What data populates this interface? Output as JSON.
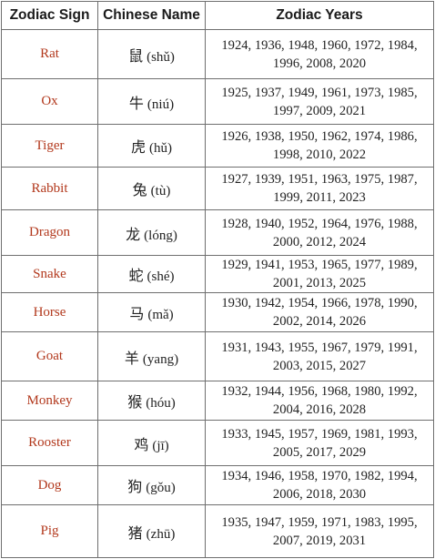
{
  "table": {
    "headers": {
      "sign": "Zodiac Sign",
      "chinese": "Chinese Name",
      "years": "Zodiac Years"
    },
    "rows": [
      {
        "sign": "Rat",
        "hanzi": "鼠",
        "pinyin": "(shǔ)",
        "years_line1": "1924, 1936, 1948, 1960, 1972, 1984,",
        "years_line2": "1996, 2008, 2020"
      },
      {
        "sign": "Ox",
        "hanzi": "牛",
        "pinyin": "(niú)",
        "years_line1": "1925, 1937, 1949, 1961, 1973, 1985,",
        "years_line2": "1997, 2009, 2021"
      },
      {
        "sign": "Tiger",
        "hanzi": "虎",
        "pinyin": "(hǔ)",
        "years_line1": "1926, 1938, 1950, 1962, 1974, 1986,",
        "years_line2": "1998, 2010, 2022"
      },
      {
        "sign": "Rabbit",
        "hanzi": "兔",
        "pinyin": "(tù)",
        "years_line1": "1927, 1939, 1951, 1963, 1975, 1987,",
        "years_line2": "1999, 2011, 2023"
      },
      {
        "sign": "Dragon",
        "hanzi": "龙",
        "pinyin": "(lóng)",
        "years_line1": "1928, 1940, 1952, 1964, 1976, 1988,",
        "years_line2": "2000, 2012, 2024"
      },
      {
        "sign": "Snake",
        "hanzi": "蛇",
        "pinyin": "(shé)",
        "years_line1": "1929, 1941, 1953, 1965, 1977, 1989,",
        "years_line2": "2001, 2013, 2025"
      },
      {
        "sign": "Horse",
        "hanzi": "马",
        "pinyin": "(mǎ)",
        "years_line1": "1930, 1942, 1954, 1966, 1978, 1990,",
        "years_line2": "2002, 2014, 2026"
      },
      {
        "sign": "Goat",
        "hanzi": "羊",
        "pinyin": "(yang)",
        "years_line1": "1931, 1943, 1955, 1967, 1979, 1991,",
        "years_line2": "2003, 2015, 2027"
      },
      {
        "sign": "Monkey",
        "hanzi": "猴",
        "pinyin": "(hóu)",
        "years_line1": "1932, 1944, 1956, 1968, 1980, 1992,",
        "years_line2": "2004, 2016, 2028"
      },
      {
        "sign": "Rooster",
        "hanzi": "鸡",
        "pinyin": "(jī)",
        "years_line1": "1933, 1945, 1957, 1969, 1981, 1993,",
        "years_line2": "2005, 2017, 2029"
      },
      {
        "sign": "Dog",
        "hanzi": "狗",
        "pinyin": "(gǒu)",
        "years_line1": "1934, 1946, 1958, 1970, 1982, 1994,",
        "years_line2": "2006, 2018, 2030"
      },
      {
        "sign": "Pig",
        "hanzi": "猪",
        "pinyin": "(zhū)",
        "years_line1": "1935, 1947, 1959, 1971, 1983, 1995,",
        "years_line2": "2007, 2019, 2031"
      }
    ]
  },
  "colors": {
    "sign_text": "#b2381c",
    "border": "#6f6f6f",
    "body_text": "#222222"
  }
}
